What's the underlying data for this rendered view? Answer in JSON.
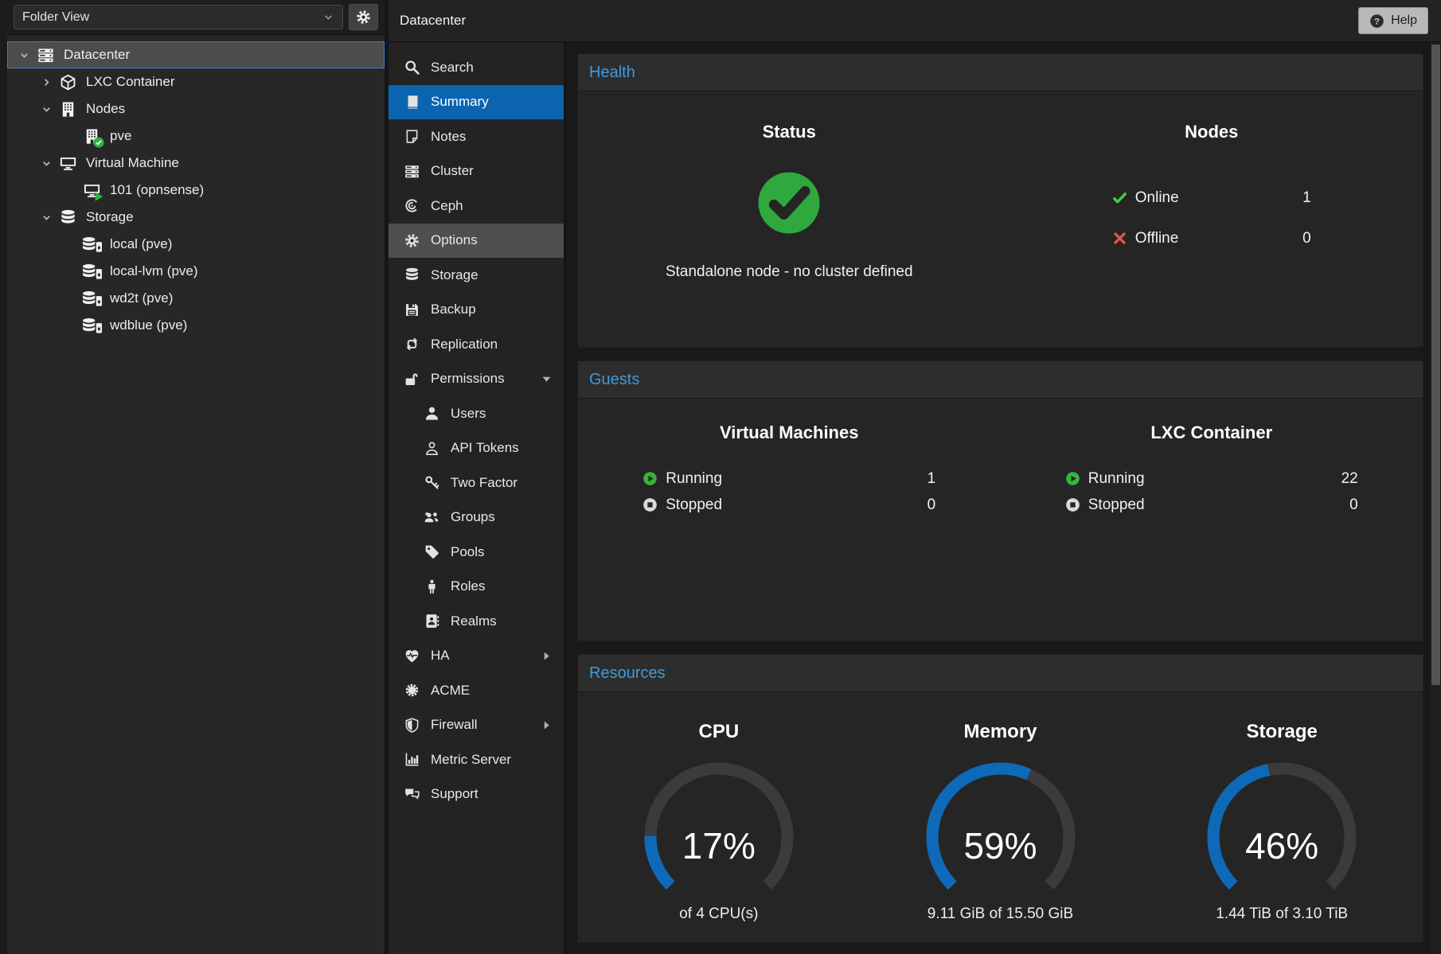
{
  "tree_panel": {
    "view_label": "Folder View"
  },
  "tree": {
    "items": [
      {
        "label": "Datacenter",
        "level": 0,
        "caret": "down",
        "icon": "server-stack-icon",
        "selected": true
      },
      {
        "label": "LXC Container",
        "level": 1,
        "caret": "right",
        "icon": "cube-icon"
      },
      {
        "label": "Nodes",
        "level": 1,
        "caret": "down",
        "icon": "building-icon"
      },
      {
        "label": "pve",
        "level": 2,
        "caret": null,
        "icon": "building-icon",
        "badge": "check"
      },
      {
        "label": "Virtual Machine",
        "level": 1,
        "caret": "down",
        "icon": "desktop-icon"
      },
      {
        "label": "101 (opnsense)",
        "level": 2,
        "caret": null,
        "icon": "desktop-icon",
        "badge": "play"
      },
      {
        "label": "Storage",
        "level": 1,
        "caret": "down",
        "icon": "database-icon"
      },
      {
        "label": "local (pve)",
        "level": 2,
        "caret": null,
        "icon": "database-drive-icon"
      },
      {
        "label": "local-lvm (pve)",
        "level": 2,
        "caret": null,
        "icon": "database-drive-icon"
      },
      {
        "label": "wd2t (pve)",
        "level": 2,
        "caret": null,
        "icon": "database-drive-icon"
      },
      {
        "label": "wdblue (pve)",
        "level": 2,
        "caret": null,
        "icon": "database-drive-icon"
      }
    ]
  },
  "header": {
    "title": "Datacenter",
    "help_label": "Help"
  },
  "nav": {
    "items": [
      {
        "label": "Search",
        "icon": "search-icon"
      },
      {
        "label": "Summary",
        "icon": "book-icon",
        "state": "selected"
      },
      {
        "label": "Notes",
        "icon": "note-icon"
      },
      {
        "label": "Cluster",
        "icon": "cluster-icon"
      },
      {
        "label": "Ceph",
        "icon": "ceph-icon"
      },
      {
        "label": "Options",
        "icon": "gear-icon",
        "state": "hover"
      },
      {
        "label": "Storage",
        "icon": "database-icon"
      },
      {
        "label": "Backup",
        "icon": "floppy-icon"
      },
      {
        "label": "Replication",
        "icon": "replication-icon"
      },
      {
        "label": "Permissions",
        "icon": "unlock-icon",
        "arrow": "down"
      },
      {
        "label": "Users",
        "icon": "user-icon",
        "indent": 1
      },
      {
        "label": "API Tokens",
        "icon": "user-outline-icon",
        "indent": 1
      },
      {
        "label": "Two Factor",
        "icon": "key-icon",
        "indent": 1
      },
      {
        "label": "Groups",
        "icon": "users-icon",
        "indent": 1
      },
      {
        "label": "Pools",
        "icon": "tag-icon",
        "indent": 1
      },
      {
        "label": "Roles",
        "icon": "person-icon",
        "indent": 1
      },
      {
        "label": "Realms",
        "icon": "address-book-icon",
        "indent": 1
      },
      {
        "label": "HA",
        "icon": "heartbeat-icon",
        "arrow": "right"
      },
      {
        "label": "ACME",
        "icon": "seal-icon"
      },
      {
        "label": "Firewall",
        "icon": "shield-icon",
        "arrow": "right"
      },
      {
        "label": "Metric Server",
        "icon": "chart-icon"
      },
      {
        "label": "Support",
        "icon": "comments-icon"
      }
    ]
  },
  "health": {
    "title": "Health",
    "status": {
      "heading": "Status",
      "icon": "status-check-icon",
      "message": "Standalone node - no cluster defined"
    },
    "nodes": {
      "heading": "Nodes",
      "rows": [
        {
          "label": "Online",
          "value": "1",
          "icon": "check-icon"
        },
        {
          "label": "Offline",
          "value": "0",
          "icon": "cross-icon"
        }
      ]
    }
  },
  "guests": {
    "title": "Guests",
    "columns": [
      {
        "heading": "Virtual Machines",
        "rows": [
          {
            "label": "Running",
            "value": "1",
            "icon": "running-icon"
          },
          {
            "label": "Stopped",
            "value": "0",
            "icon": "stopped-icon"
          }
        ]
      },
      {
        "heading": "LXC Container",
        "rows": [
          {
            "label": "Running",
            "value": "22",
            "icon": "running-icon"
          },
          {
            "label": "Stopped",
            "value": "0",
            "icon": "stopped-icon"
          }
        ]
      }
    ]
  },
  "resources": {
    "title": "Resources",
    "gauges": [
      {
        "label": "CPU",
        "percent": 17,
        "percent_label": "17%",
        "sub": "of 4 CPU(s)"
      },
      {
        "label": "Memory",
        "percent": 59,
        "percent_label": "59%",
        "sub": "9.11 GiB of 15.50 GiB"
      },
      {
        "label": "Storage",
        "percent": 46,
        "percent_label": "46%",
        "sub": "1.44 TiB of 3.10 TiB"
      }
    ]
  },
  "colors": {
    "accent_blue": "#0c64b0",
    "heading_blue": "#3f9bdc",
    "gauge_blue": "#0e6ab8",
    "green": "#2fa83d",
    "red": "#e25555"
  }
}
